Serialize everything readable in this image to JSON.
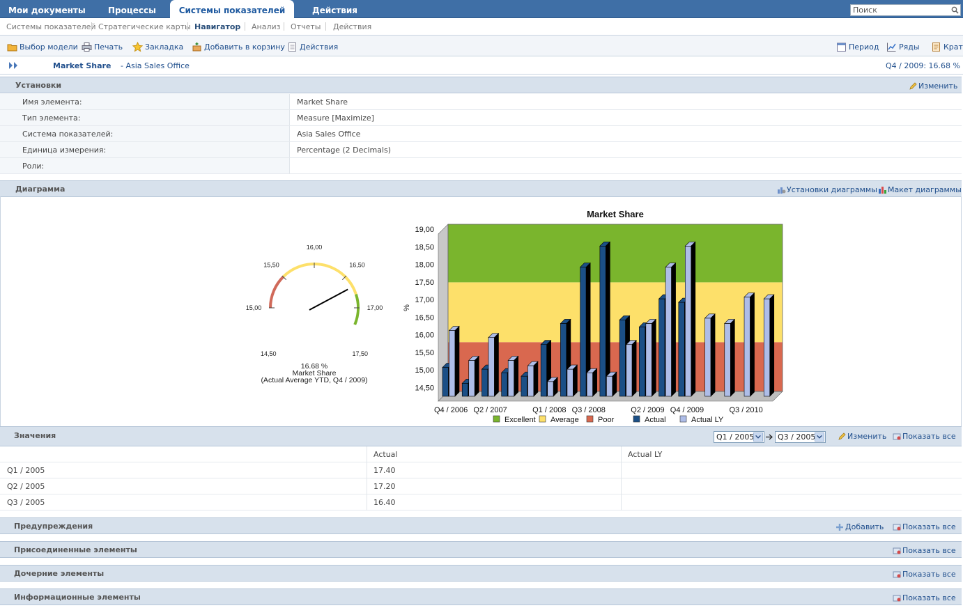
{
  "topnav": {
    "tabs": [
      "Мои документы",
      "Процессы",
      "Системы показателей",
      "Действия"
    ],
    "search_placeholder": "Поиск"
  },
  "subnav": {
    "items": [
      "Системы показателей",
      "Стратегические карты",
      "Навигатор",
      "Анализ",
      "Отчеты",
      "Действия"
    ]
  },
  "toolbar": {
    "left": [
      "Выбор модели",
      "Печать",
      "Закладка",
      "Добавить в корзину",
      "Действия"
    ],
    "right": [
      "Период",
      "Ряды",
      "Крат"
    ]
  },
  "titlebar": {
    "element": "Market Share",
    "context": "- Asia Sales Office",
    "period_value": "Q4 / 2009: 16.68 %"
  },
  "settings": {
    "title": "Установки",
    "edit_label": "Изменить",
    "rows": [
      {
        "label": "Имя элемента:",
        "value": "Market Share"
      },
      {
        "label": "Тип элемента:",
        "value": "Measure [Maximize]"
      },
      {
        "label": "Система показателей:",
        "value": "Asia Sales Office"
      },
      {
        "label": "Единица измерения:",
        "value": "Percentage (2 Decimals)"
      },
      {
        "label": "Роли:",
        "value": ""
      }
    ]
  },
  "diagram": {
    "title": "Диаграмма",
    "settings_label": "Установки диаграммы",
    "layout_label": "Макет диаграммы"
  },
  "gauge": {
    "ticks": [
      "14,50",
      "15,00",
      "15,50",
      "16,00",
      "16,50",
      "17,00",
      "17,50"
    ],
    "value": 16.68,
    "value_label": "16.68 %",
    "name": "Market Share",
    "caption": "(Actual Average YTD, Q4 / 2009)",
    "min": 14.5,
    "max": 17.5,
    "poor_to": 15.5,
    "avg_to": 16.8
  },
  "chart_data": {
    "type": "bar",
    "title": "Market Share",
    "ylabel": "%",
    "ylim": [
      14.25,
      19.0
    ],
    "yticks": [
      "14,50",
      "15,00",
      "15,50",
      "16,00",
      "16,50",
      "17,00",
      "17,50",
      "18,00",
      "18,50",
      "19,00"
    ],
    "xtick_labels": [
      "Q4 / 2006",
      "Q2 / 2007",
      "Q1 / 2008",
      "Q3 / 2008",
      "Q2 / 2009",
      "Q4 / 2009",
      "Q3 / 2010"
    ],
    "categories": [
      "Q4 / 2006",
      "Q1 / 2007",
      "Q2 / 2007",
      "Q3 / 2007",
      "Q4 / 2007",
      "Q1 / 2008",
      "Q2 / 2008",
      "Q3 / 2008",
      "Q4 / 2008",
      "Q1 / 2009",
      "Q2 / 2009",
      "Q3 / 2009",
      "Q4 / 2009",
      "Q1 / 2010",
      "Q2 / 2010",
      "Q3 / 2010",
      "Q4 / 2010"
    ],
    "series": [
      {
        "name": "Actual",
        "values": [
          15.05,
          14.6,
          15.0,
          14.9,
          14.8,
          15.7,
          16.3,
          17.9,
          18.5,
          16.4,
          16.2,
          17.0,
          16.9,
          null,
          null,
          null,
          null
        ]
      },
      {
        "name": "Actual LY",
        "values": [
          16.1,
          15.25,
          15.9,
          15.25,
          15.1,
          14.65,
          15.0,
          14.9,
          14.8,
          15.7,
          16.3,
          17.9,
          18.5,
          16.45,
          16.3,
          17.05,
          17.0
        ]
      }
    ],
    "bands": [
      {
        "name": "Poor",
        "from": 14.25,
        "to": 15.65,
        "color": "#d9684f"
      },
      {
        "name": "Average",
        "from": 15.65,
        "to": 17.35,
        "color": "#fde06a"
      },
      {
        "name": "Excellent",
        "from": 17.35,
        "to": 19.4,
        "color": "#7ab52d"
      }
    ],
    "legend": [
      "Excellent",
      "Average",
      "Poor",
      "Actual",
      "Actual LY"
    ],
    "colors": {
      "actual": "#1b4f86",
      "actual_ly": "#aebde8"
    }
  },
  "values": {
    "title": "Значения",
    "from": "Q1 / 2005",
    "to": "Q3 / 2005",
    "edit_label": "Изменить",
    "show_all": "Показать все",
    "columns": [
      "",
      "Actual",
      "Actual LY"
    ],
    "rows": [
      [
        "Q1 / 2005",
        "17.40",
        ""
      ],
      [
        "Q2 / 2005",
        "17.20",
        ""
      ],
      [
        "Q3 / 2005",
        "16.40",
        ""
      ]
    ]
  },
  "warnings": {
    "title": "Предупреждения",
    "add_label": "Добавить",
    "show_all": "Показать все"
  },
  "attached": {
    "title": "Присоединенные элементы",
    "show_all": "Показать все"
  },
  "children": {
    "title": "Дочерние элементы",
    "show_all": "Показать все"
  },
  "info": {
    "title": "Информационные элементы",
    "show_all": "Показать все"
  }
}
